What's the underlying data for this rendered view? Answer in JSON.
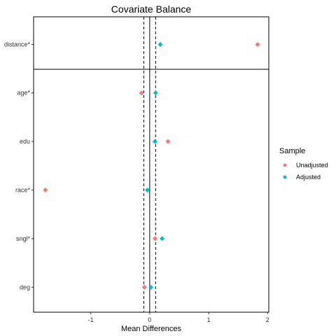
{
  "chart_data": {
    "type": "scatter",
    "title": "Covariate Balance",
    "xlabel": "Mean Differences",
    "ylabel": "",
    "xlim": [
      -1.97,
      2.02
    ],
    "x_ticks": [
      -1,
      0,
      1,
      2
    ],
    "x_tick_labels": [
      "-1",
      "0",
      "1",
      "2"
    ],
    "categories": [
      "distance*",
      "age*",
      "edu",
      "race*",
      "sngl*",
      "deg"
    ],
    "panel_split_after": "distance*",
    "reference_lines": [
      {
        "x": 0,
        "style": "solid"
      },
      {
        "x": -0.1,
        "style": "dashed"
      },
      {
        "x": 0.1,
        "style": "dashed"
      }
    ],
    "series": [
      {
        "name": "Unadjusted",
        "color": "#F8766D",
        "values": [
          1.83,
          -0.14,
          0.31,
          -1.77,
          0.09,
          -0.09
        ]
      },
      {
        "name": "Adjusted",
        "color": "#00BFC4",
        "values": [
          0.18,
          0.1,
          0.09,
          -0.04,
          0.21,
          0.02
        ]
      }
    ],
    "grid": false,
    "legend": {
      "title": "Sample",
      "position": "right"
    }
  }
}
